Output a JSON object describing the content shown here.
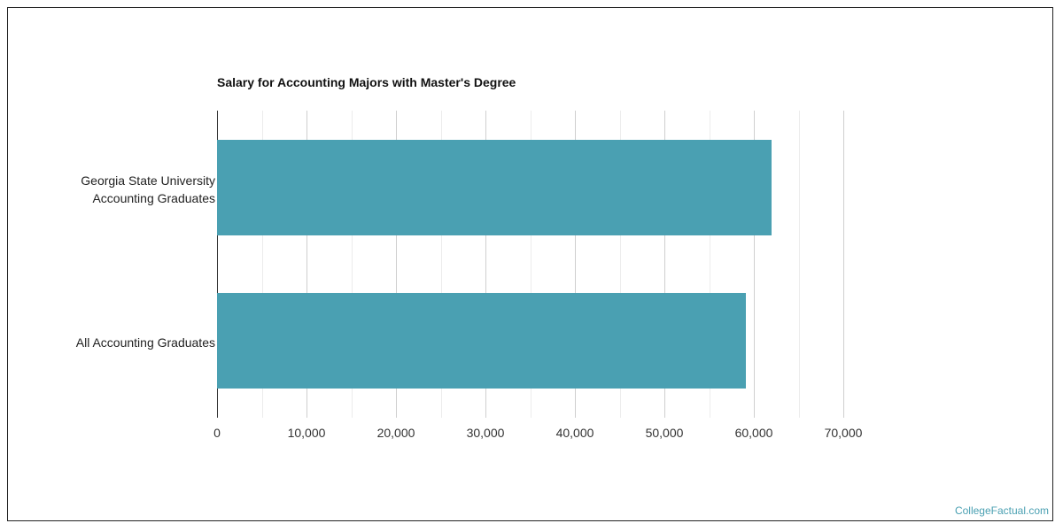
{
  "chart_data": {
    "type": "bar",
    "orientation": "horizontal",
    "title": "Salary for Accounting Majors with Master's Degree",
    "categories": [
      "Georgia State University Accounting Graduates",
      "All Accounting Graduates"
    ],
    "category_lines": [
      [
        "Georgia State University",
        "Accounting Graduates"
      ],
      [
        "All Accounting Graduates"
      ]
    ],
    "values": [
      62000,
      59100
    ],
    "xlabel": "",
    "ylabel": "",
    "xlim": [
      0,
      70000
    ],
    "xticks": [
      "0",
      "10,000",
      "20,000",
      "30,000",
      "40,000",
      "50,000",
      "60,000",
      "70,000"
    ],
    "grid": true,
    "legend": "none",
    "bar_color": "#4aa0b2"
  },
  "credit": "CollegeFactual.com"
}
